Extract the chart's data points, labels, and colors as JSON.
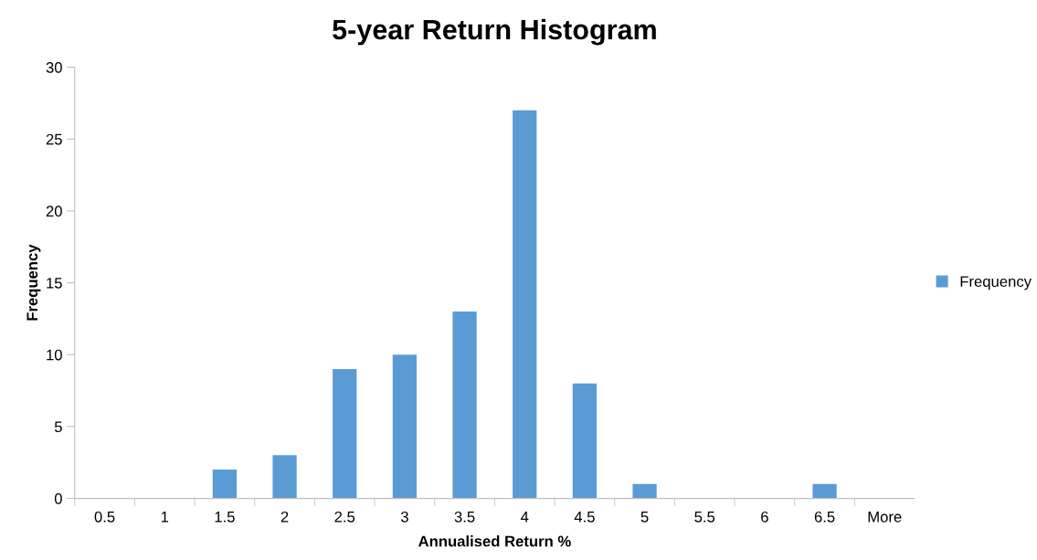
{
  "chart_data": {
    "type": "bar",
    "title": "5-year Return Histogram",
    "xlabel": "Annualised Return %",
    "ylabel": "Frequency",
    "categories": [
      "0.5",
      "1",
      "1.5",
      "2",
      "2.5",
      "3",
      "3.5",
      "4",
      "4.5",
      "5",
      "5.5",
      "6",
      "6.5",
      "More"
    ],
    "series": [
      {
        "name": "Frequency",
        "color": "#5b9bd5",
        "values": [
          0,
          0,
          2,
          3,
          9,
          10,
          13,
          27,
          8,
          1,
          0,
          0,
          1,
          0
        ]
      }
    ],
    "ylim": [
      0,
      30
    ],
    "yticks": [
      0,
      5,
      10,
      15,
      20,
      25,
      30
    ],
    "grid": false,
    "legend": "right"
  }
}
